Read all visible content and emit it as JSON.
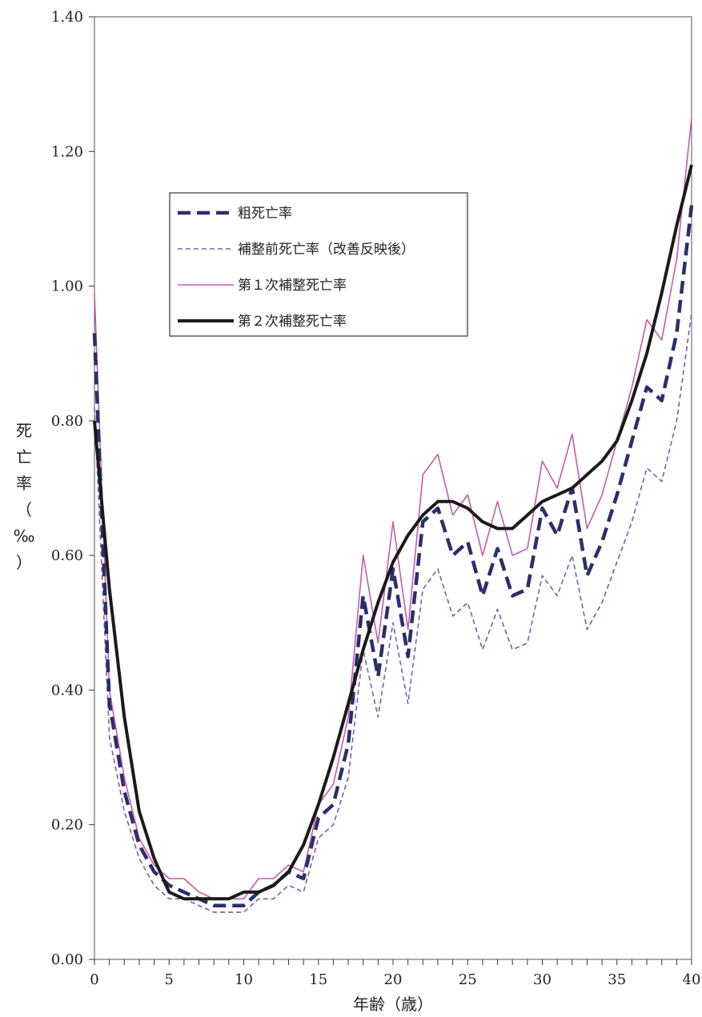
{
  "chart_data": {
    "type": "line",
    "title": "",
    "xlabel": "年齢（歳）",
    "ylabel": "死亡率（‰）",
    "xlim": [
      0,
      40
    ],
    "ylim": [
      0.0,
      1.4
    ],
    "x_ticks": [
      0,
      5,
      10,
      15,
      20,
      25,
      30,
      35,
      40
    ],
    "y_ticks": [
      "0.00",
      "0.20",
      "0.40",
      "0.60",
      "0.80",
      "1.00",
      "1.20",
      "1.40"
    ],
    "grid": false,
    "legend_position": "upper-left-center",
    "x": [
      0,
      1,
      2,
      3,
      4,
      5,
      6,
      7,
      8,
      9,
      10,
      11,
      12,
      13,
      14,
      15,
      16,
      17,
      18,
      19,
      20,
      21,
      22,
      23,
      24,
      25,
      26,
      27,
      28,
      29,
      30,
      31,
      32,
      33,
      34,
      35,
      36,
      37,
      38,
      39,
      40
    ],
    "series": [
      {
        "name": "粗死亡率",
        "color": "#2a2f6b",
        "style": "thick-dashed",
        "values": [
          0.93,
          0.38,
          0.25,
          0.17,
          0.13,
          0.11,
          0.1,
          0.09,
          0.08,
          0.08,
          0.08,
          0.1,
          0.11,
          0.13,
          0.12,
          0.21,
          0.23,
          0.32,
          0.54,
          0.42,
          0.58,
          0.45,
          0.65,
          0.67,
          0.6,
          0.62,
          0.54,
          0.61,
          0.54,
          0.55,
          0.67,
          0.63,
          0.7,
          0.57,
          0.62,
          0.69,
          0.77,
          0.85,
          0.83,
          0.93,
          1.12
        ]
      },
      {
        "name": "補整前死亡率（改善反映後）",
        "color": "#7b5ca8",
        "style": "thin-dashed",
        "values": [
          0.82,
          0.33,
          0.22,
          0.15,
          0.11,
          0.09,
          0.09,
          0.08,
          0.07,
          0.07,
          0.07,
          0.09,
          0.09,
          0.11,
          0.1,
          0.18,
          0.2,
          0.27,
          0.46,
          0.36,
          0.5,
          0.38,
          0.55,
          0.58,
          0.51,
          0.53,
          0.46,
          0.52,
          0.46,
          0.47,
          0.57,
          0.54,
          0.6,
          0.49,
          0.53,
          0.59,
          0.65,
          0.73,
          0.71,
          0.8,
          0.96
        ]
      },
      {
        "name": "第１次補整死亡率",
        "color": "#c85aa8",
        "style": "thin-solid",
        "values": [
          0.99,
          0.4,
          0.27,
          0.18,
          0.14,
          0.12,
          0.12,
          0.1,
          0.09,
          0.09,
          0.09,
          0.12,
          0.12,
          0.14,
          0.13,
          0.23,
          0.26,
          0.36,
          0.6,
          0.47,
          0.65,
          0.49,
          0.72,
          0.75,
          0.66,
          0.69,
          0.6,
          0.68,
          0.6,
          0.61,
          0.74,
          0.7,
          0.78,
          0.64,
          0.69,
          0.77,
          0.85,
          0.95,
          0.92,
          1.04,
          1.25
        ]
      },
      {
        "name": "第２次補整死亡率",
        "color": "#1a1a1a",
        "style": "thick-solid",
        "values": [
          0.8,
          0.55,
          0.36,
          0.22,
          0.15,
          0.1,
          0.09,
          0.09,
          0.09,
          0.09,
          0.1,
          0.1,
          0.11,
          0.13,
          0.17,
          0.23,
          0.3,
          0.38,
          0.46,
          0.53,
          0.59,
          0.63,
          0.66,
          0.68,
          0.68,
          0.67,
          0.65,
          0.64,
          0.64,
          0.66,
          0.68,
          0.69,
          0.7,
          0.72,
          0.74,
          0.77,
          0.83,
          0.9,
          0.99,
          1.09,
          1.18
        ]
      }
    ]
  }
}
